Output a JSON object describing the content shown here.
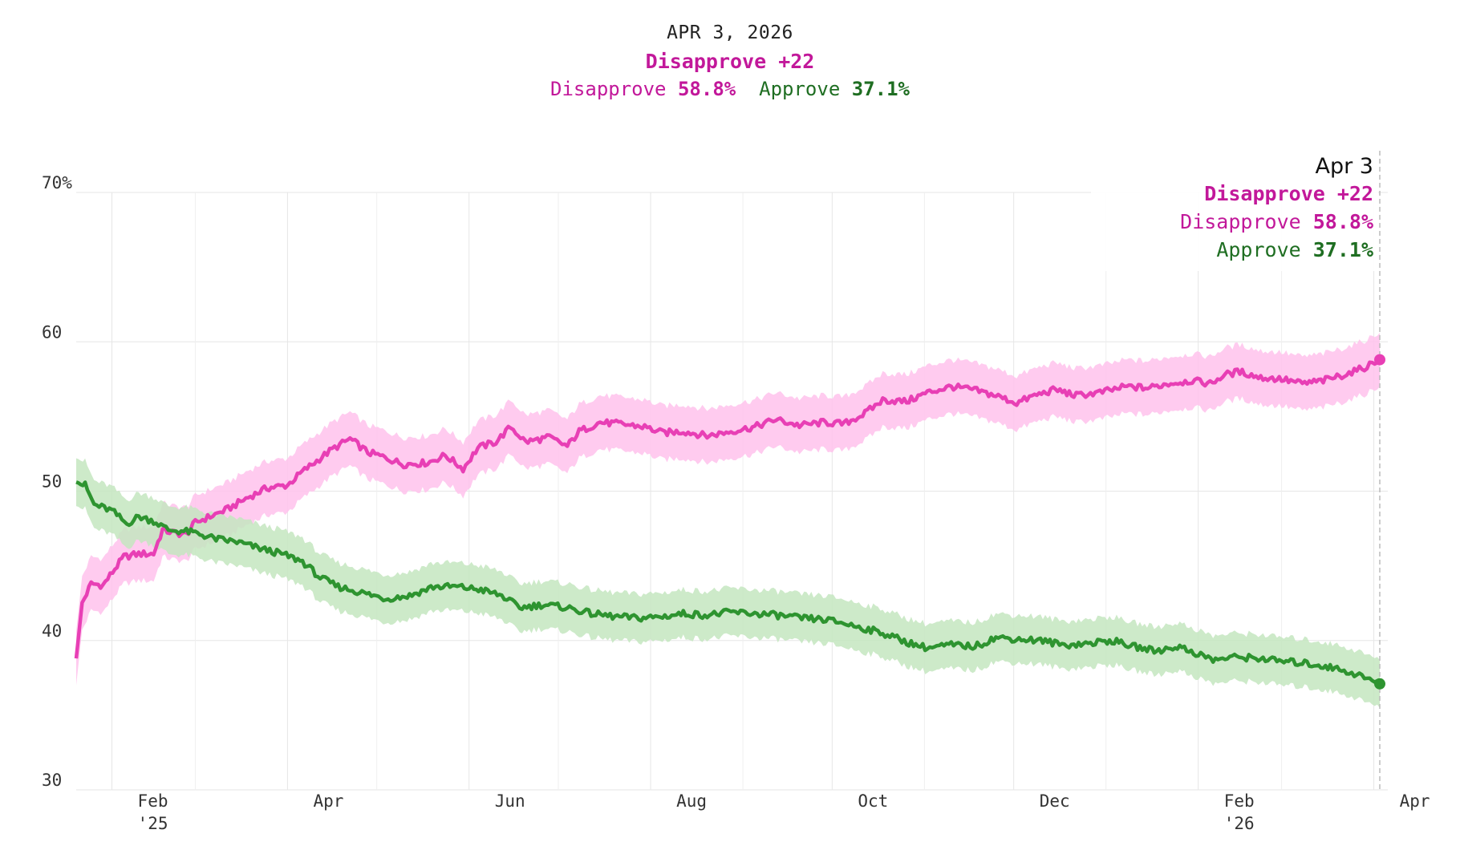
{
  "header": {
    "date": "APR 3, 2026",
    "lead": "Disapprove +22",
    "disapprove_label": "Disapprove",
    "disapprove_value": "58.8%",
    "approve_label": "Approve",
    "approve_value": "37.1%"
  },
  "tooltip": {
    "date": "Apr 3",
    "lead": "Disapprove +22",
    "disapprove_label": "Disapprove",
    "disapprove_value": "58.8%",
    "approve_label": "Approve",
    "approve_value": "37.1%"
  },
  "colors": {
    "disapprove": "#e83fb5",
    "disapprove_text": "#c2189a",
    "disapprove_band": "#ffc2ec",
    "approve": "#2e9430",
    "approve_text": "#1f6e22",
    "approve_band": "#c4e6c0",
    "grid": "#e6e6e6"
  },
  "chart_data": {
    "type": "line",
    "x_start": "2025-01-20",
    "x_end": "2026-04-03",
    "ylim": [
      30,
      70
    ],
    "y_ticks": [
      {
        "value": 70,
        "label": "70%"
      },
      {
        "value": 60,
        "label": "60"
      },
      {
        "value": 50,
        "label": "50"
      },
      {
        "value": 40,
        "label": "40"
      },
      {
        "value": 30,
        "label": "30"
      }
    ],
    "x_ticks": [
      {
        "date": "2025-02-01",
        "label": "Feb",
        "sub": "'25"
      },
      {
        "date": "2025-04-01",
        "label": "Apr",
        "sub": ""
      },
      {
        "date": "2025-06-01",
        "label": "Jun",
        "sub": ""
      },
      {
        "date": "2025-08-01",
        "label": "Aug",
        "sub": ""
      },
      {
        "date": "2025-10-01",
        "label": "Oct",
        "sub": ""
      },
      {
        "date": "2025-12-01",
        "label": "Dec",
        "sub": ""
      },
      {
        "date": "2026-02-01",
        "label": "Feb",
        "sub": "'26"
      },
      {
        "date": "2026-04-01",
        "label": "Apr",
        "sub": ""
      }
    ],
    "series": [
      {
        "name": "Disapprove",
        "band_width": 1.8,
        "points": [
          [
            "2025-01-20",
            38.8
          ],
          [
            "2025-01-22",
            42.5
          ],
          [
            "2025-01-25",
            43.8
          ],
          [
            "2025-01-29",
            43.7
          ],
          [
            "2025-02-02",
            44.8
          ],
          [
            "2025-02-05",
            45.6
          ],
          [
            "2025-02-10",
            45.8
          ],
          [
            "2025-02-15",
            45.8
          ],
          [
            "2025-02-18",
            47.4
          ],
          [
            "2025-02-22",
            47.2
          ],
          [
            "2025-02-26",
            47.1
          ],
          [
            "2025-03-01",
            47.9
          ],
          [
            "2025-03-06",
            48.3
          ],
          [
            "2025-03-12",
            48.8
          ],
          [
            "2025-03-18",
            49.5
          ],
          [
            "2025-03-25",
            50.2
          ],
          [
            "2025-04-01",
            50.4
          ],
          [
            "2025-04-06",
            51.3
          ],
          [
            "2025-04-10",
            51.9
          ],
          [
            "2025-04-16",
            52.8
          ],
          [
            "2025-04-22",
            53.5
          ],
          [
            "2025-04-28",
            52.6
          ],
          [
            "2025-05-03",
            52.3
          ],
          [
            "2025-05-10",
            51.8
          ],
          [
            "2025-05-18",
            51.9
          ],
          [
            "2025-05-24",
            52.4
          ],
          [
            "2025-05-30",
            51.5
          ],
          [
            "2025-06-04",
            52.9
          ],
          [
            "2025-06-10",
            53.3
          ],
          [
            "2025-06-15",
            54.3
          ],
          [
            "2025-06-20",
            53.3
          ],
          [
            "2025-06-28",
            53.6
          ],
          [
            "2025-07-04",
            53.0
          ],
          [
            "2025-07-08",
            54.0
          ],
          [
            "2025-07-15",
            54.6
          ],
          [
            "2025-07-22",
            54.5
          ],
          [
            "2025-07-30",
            54.3
          ],
          [
            "2025-08-05",
            53.9
          ],
          [
            "2025-08-12",
            54.0
          ],
          [
            "2025-08-20",
            53.7
          ],
          [
            "2025-08-28",
            54.0
          ],
          [
            "2025-09-05",
            54.3
          ],
          [
            "2025-09-12",
            54.8
          ],
          [
            "2025-09-20",
            54.4
          ],
          [
            "2025-09-28",
            54.6
          ],
          [
            "2025-10-05",
            54.5
          ],
          [
            "2025-10-12",
            55.2
          ],
          [
            "2025-10-18",
            56.1
          ],
          [
            "2025-10-26",
            56.0
          ],
          [
            "2025-11-02",
            56.6
          ],
          [
            "2025-11-10",
            57.0
          ],
          [
            "2025-11-17",
            56.8
          ],
          [
            "2025-11-25",
            56.4
          ],
          [
            "2025-12-02",
            55.9
          ],
          [
            "2025-12-08",
            56.4
          ],
          [
            "2025-12-15",
            56.8
          ],
          [
            "2025-12-22",
            56.4
          ],
          [
            "2025-12-30",
            56.6
          ],
          [
            "2026-01-08",
            57.0
          ],
          [
            "2026-01-15",
            56.9
          ],
          [
            "2026-01-22",
            57.2
          ],
          [
            "2026-01-30",
            57.4
          ],
          [
            "2026-02-05",
            57.2
          ],
          [
            "2026-02-10",
            57.8
          ],
          [
            "2026-02-15",
            58.0
          ],
          [
            "2026-02-22",
            57.6
          ],
          [
            "2026-03-01",
            57.5
          ],
          [
            "2026-03-08",
            57.2
          ],
          [
            "2026-03-15",
            57.4
          ],
          [
            "2026-03-22",
            57.8
          ],
          [
            "2026-03-28",
            58.2
          ],
          [
            "2026-04-03",
            58.8
          ]
        ]
      },
      {
        "name": "Approve",
        "band_width": 1.6,
        "points": [
          [
            "2025-01-20",
            50.6
          ],
          [
            "2025-01-23",
            50.4
          ],
          [
            "2025-01-26",
            49.1
          ],
          [
            "2025-02-01",
            48.7
          ],
          [
            "2025-02-06",
            47.8
          ],
          [
            "2025-02-10",
            48.3
          ],
          [
            "2025-02-15",
            48.0
          ],
          [
            "2025-02-20",
            47.4
          ],
          [
            "2025-02-26",
            47.3
          ],
          [
            "2025-03-01",
            47.2
          ],
          [
            "2025-03-08",
            46.8
          ],
          [
            "2025-03-15",
            46.6
          ],
          [
            "2025-03-22",
            46.2
          ],
          [
            "2025-03-30",
            45.8
          ],
          [
            "2025-04-06",
            45.3
          ],
          [
            "2025-04-12",
            44.2
          ],
          [
            "2025-04-18",
            43.6
          ],
          [
            "2025-04-26",
            43.2
          ],
          [
            "2025-05-04",
            42.8
          ],
          [
            "2025-05-12",
            43.0
          ],
          [
            "2025-05-20",
            43.6
          ],
          [
            "2025-05-28",
            43.6
          ],
          [
            "2025-06-05",
            43.4
          ],
          [
            "2025-06-12",
            43.0
          ],
          [
            "2025-06-18",
            42.2
          ],
          [
            "2025-06-26",
            42.4
          ],
          [
            "2025-07-04",
            42.2
          ],
          [
            "2025-07-12",
            41.8
          ],
          [
            "2025-07-20",
            41.6
          ],
          [
            "2025-07-28",
            41.5
          ],
          [
            "2025-08-05",
            41.6
          ],
          [
            "2025-08-12",
            41.8
          ],
          [
            "2025-08-20",
            41.7
          ],
          [
            "2025-08-28",
            41.9
          ],
          [
            "2025-09-05",
            41.8
          ],
          [
            "2025-09-12",
            41.7
          ],
          [
            "2025-09-20",
            41.5
          ],
          [
            "2025-09-28",
            41.4
          ],
          [
            "2025-10-04",
            41.2
          ],
          [
            "2025-10-10",
            40.9
          ],
          [
            "2025-10-18",
            40.5
          ],
          [
            "2025-10-26",
            39.9
          ],
          [
            "2025-11-02",
            39.5
          ],
          [
            "2025-11-10",
            39.7
          ],
          [
            "2025-11-18",
            39.6
          ],
          [
            "2025-11-25",
            40.2
          ],
          [
            "2025-12-02",
            40.1
          ],
          [
            "2025-12-10",
            40.0
          ],
          [
            "2025-12-18",
            39.7
          ],
          [
            "2025-12-26",
            39.8
          ],
          [
            "2026-01-03",
            40.0
          ],
          [
            "2026-01-10",
            39.6
          ],
          [
            "2026-01-18",
            39.3
          ],
          [
            "2026-01-25",
            39.6
          ],
          [
            "2026-02-01",
            39.1
          ],
          [
            "2026-02-06",
            38.7
          ],
          [
            "2026-02-14",
            38.9
          ],
          [
            "2026-02-22",
            38.8
          ],
          [
            "2026-03-01",
            38.6
          ],
          [
            "2026-03-08",
            38.5
          ],
          [
            "2026-03-15",
            38.3
          ],
          [
            "2026-03-22",
            38.0
          ],
          [
            "2026-03-28",
            37.6
          ],
          [
            "2026-04-03",
            37.1
          ]
        ]
      }
    ]
  }
}
